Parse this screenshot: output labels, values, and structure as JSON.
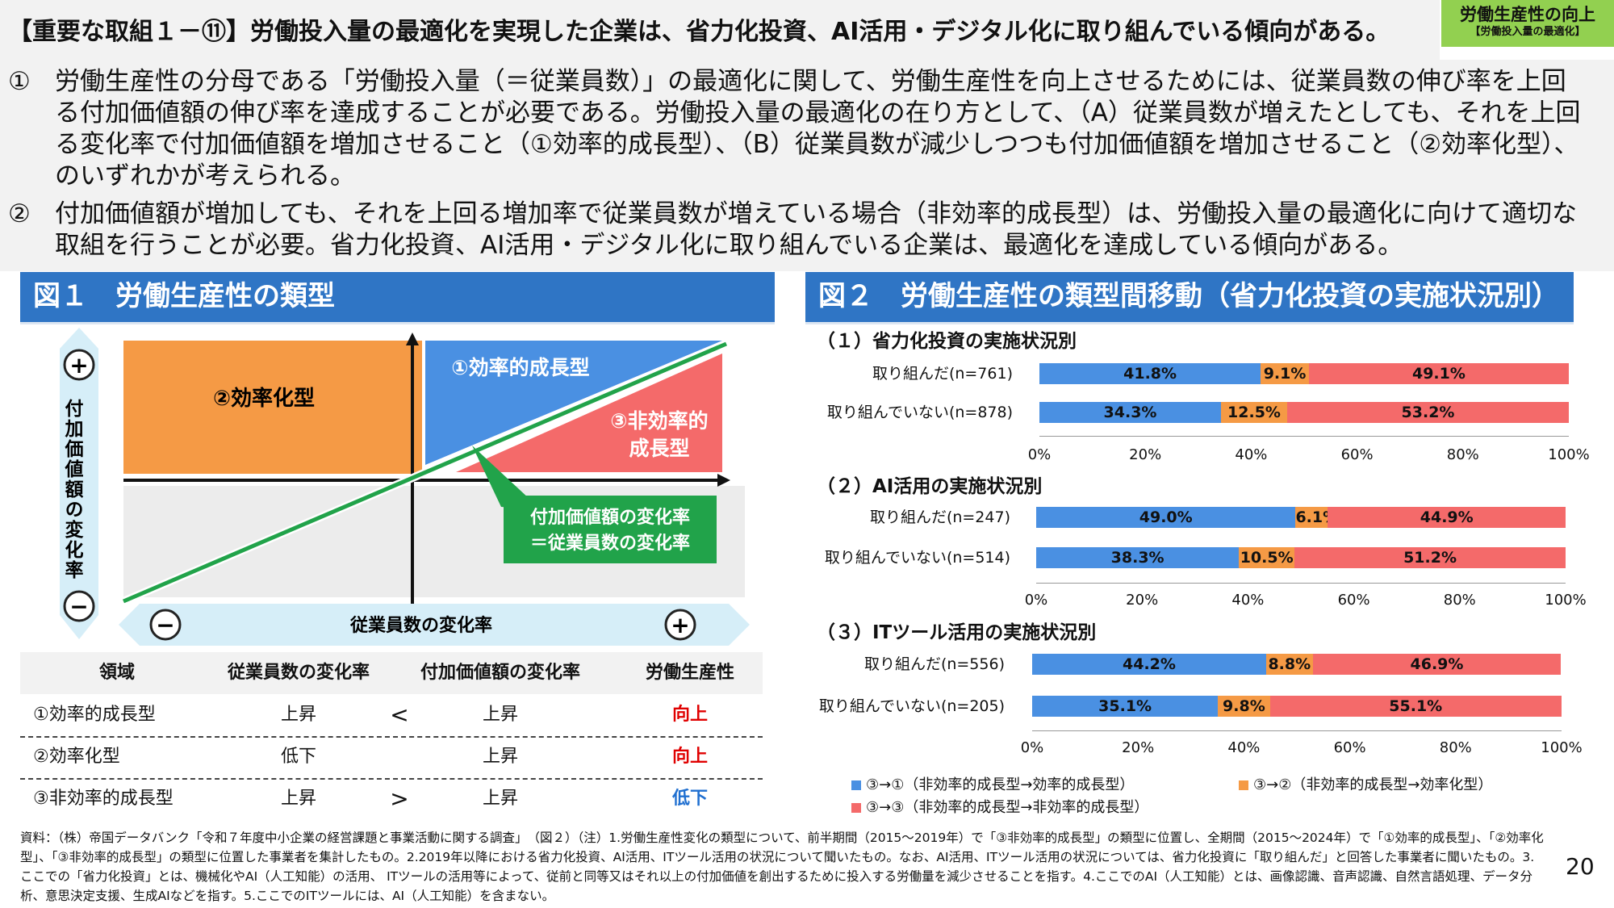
{
  "header": {
    "title": "【重要な取組１－⑪】労働投入量の最適化を実現した企業は、省力化投資、AI活用・デジタル化に取り組んでいる傾向がある。",
    "badge_line1": "労働生産性の向上",
    "badge_line2": "【労働投入量の最適化】"
  },
  "intro": {
    "p1_num": "①",
    "p1_text": "労働生産性の分母である「労働投入量（＝従業員数）」の最適化に関して、労働生産性を向上させるためには、従業員数の伸び率を上回る付加価値額の伸び率を達成することが必要である。労働投入量の最適化の在り方として、（A）従業員数が増えたとしても、それを上回る変化率で付加価値額を増加させること（①効率的成長型）、（B）従業員数が減少しつつも付加価値額を増加させること（②効率化型）、のいずれかが考えられる。",
    "p2_num": "②",
    "p2_text": "付加価値額が増加しても、それを上回る増加率で従業員数が増えている場合（非効率的成長型）は、労働投入量の最適化に向けて適切な取組を行うことが必要。省力化投資、AI活用・デジタル化に取り組んでいる企業は、最適化を達成している傾向がある。"
  },
  "fig1": {
    "title": "図１　労働生産性の類型",
    "y_axis_label": "付加価値額の変化率",
    "x_axis_label": "従業員数の変化率",
    "plus": "+",
    "minus": "−",
    "q_efficient_growth": "①効率的成長型",
    "q_efficiency": "②効率化型",
    "q_inefficient_1": "③非効率的",
    "q_inefficient_2": "成長型",
    "callout_1": "付加価値額の変化率",
    "callout_2": "＝従業員数の変化率",
    "table": {
      "headers": [
        "領域",
        "従業員数の変化率",
        "付加価値額の変化率",
        "労働生産性"
      ],
      "rows": [
        {
          "type": "①効率的成長型",
          "emp": "上昇",
          "op": "<",
          "va": "上昇",
          "prod": "向上",
          "prod_color": "#e00000"
        },
        {
          "type": "②効率化型",
          "emp": "低下",
          "op": "",
          "va": "上昇",
          "prod": "向上",
          "prod_color": "#e00000"
        },
        {
          "type": "③非効率的成長型",
          "emp": "上昇",
          "op": ">",
          "va": "上昇",
          "prod": "低下",
          "prod_color": "#1f6fd0"
        }
      ]
    }
  },
  "fig2": {
    "title": "図２　労働生産性の類型間移動（省力化投資の実施状況別）",
    "colors": {
      "to1": "#4a90e2",
      "to2": "#f59a45",
      "to3": "#f46a6a"
    },
    "ticks": [
      "0%",
      "20%",
      "40%",
      "60%",
      "80%",
      "100%"
    ],
    "legend": {
      "to1": "③→①（非効率的成長型→効率的成長型）",
      "to2": "③→②（非効率的成長型→効率化型）",
      "to3": "③→③（非効率的成長型→非効率的成長型）"
    }
  },
  "chart_data": [
    {
      "type": "bar",
      "stacked": "100%",
      "title": "（１）省力化投資の実施状況別",
      "categories": [
        "取り組んだ(n=761)",
        "取り組んでいない(n=878)"
      ],
      "series": [
        {
          "name": "③→①（非効率的成長型→効率的成長型）",
          "values": [
            41.8,
            34.3
          ],
          "labels": [
            "41.8%",
            "34.3%"
          ]
        },
        {
          "name": "③→②（非効率的成長型→効率化型）",
          "values": [
            9.1,
            12.5
          ],
          "labels": [
            "9.1%",
            "12.5%"
          ]
        },
        {
          "name": "③→③（非効率的成長型→非効率的成長型）",
          "values": [
            49.1,
            53.2
          ],
          "labels": [
            "49.1%",
            "53.2%"
          ]
        }
      ],
      "xlim": [
        0,
        100
      ]
    },
    {
      "type": "bar",
      "stacked": "100%",
      "title": "（２）AI活用の実施状況別",
      "categories": [
        "取り組んだ(n=247)",
        "取り組んでいない(n=514)"
      ],
      "series": [
        {
          "name": "③→①（非効率的成長型→効率的成長型）",
          "values": [
            49.0,
            38.3
          ],
          "labels": [
            "49.0%",
            "38.3%"
          ]
        },
        {
          "name": "③→②（非効率的成長型→効率化型）",
          "values": [
            6.1,
            10.5
          ],
          "labels": [
            "6.1%",
            "10.5%"
          ]
        },
        {
          "name": "③→③（非効率的成長型→非効率的成長型）",
          "values": [
            44.9,
            51.2
          ],
          "labels": [
            "44.9%",
            "51.2%"
          ]
        }
      ],
      "xlim": [
        0,
        100
      ]
    },
    {
      "type": "bar",
      "stacked": "100%",
      "title": "（３）ITツール活用の実施状況別",
      "categories": [
        "取り組んだ(n=556)",
        "取り組んでいない(n=205)"
      ],
      "series": [
        {
          "name": "③→①（非効率的成長型→効率的成長型）",
          "values": [
            44.2,
            35.1
          ],
          "labels": [
            "44.2%",
            "35.1%"
          ]
        },
        {
          "name": "③→②（非効率的成長型→効率化型）",
          "values": [
            8.8,
            9.8
          ],
          "labels": [
            "8.8%",
            "9.8%"
          ]
        },
        {
          "name": "③→③（非効率的成長型→非効率的成長型）",
          "values": [
            46.9,
            55.1
          ],
          "labels": [
            "46.9%",
            "55.1%"
          ]
        }
      ],
      "xlim": [
        0,
        100
      ]
    }
  ],
  "source": "資料：（株）帝国データバンク「令和７年度中小企業の経営課題と事業活動に関する調査」　（図２）（注）1.労働生産性変化の類型について、前半期間（2015～2019年）で「③非効率的成長型」の類型に位置し、全期間（2015～2024年）で「①効率的成長型」、「②効率化型」、「③非効率的成長型」の類型に位置した事業者を集計したもの。2.2019年以降における省力化投資、AI活用、ITツール活用の状況について聞いたもの。なお、AI活用、ITツール活用の状況については、省力化投資に「取り組んだ」と回答した事業者に聞いたもの。3.ここでの「省力化投資」とは、機械化やAI（人工知能）の活用、 ITツールの活用等によって、従前と同等又はそれ以上の付加価値を創出するために投入する労働量を減少させることを指す。4.ここでのAI（人工知能）とは、画像認識、音声認識、自然言語処理、データ分析、意思決定支援、生成AIなどを指す。5.ここでのITツールには、AI（人工知能）を含まない。",
  "page_number": "20"
}
